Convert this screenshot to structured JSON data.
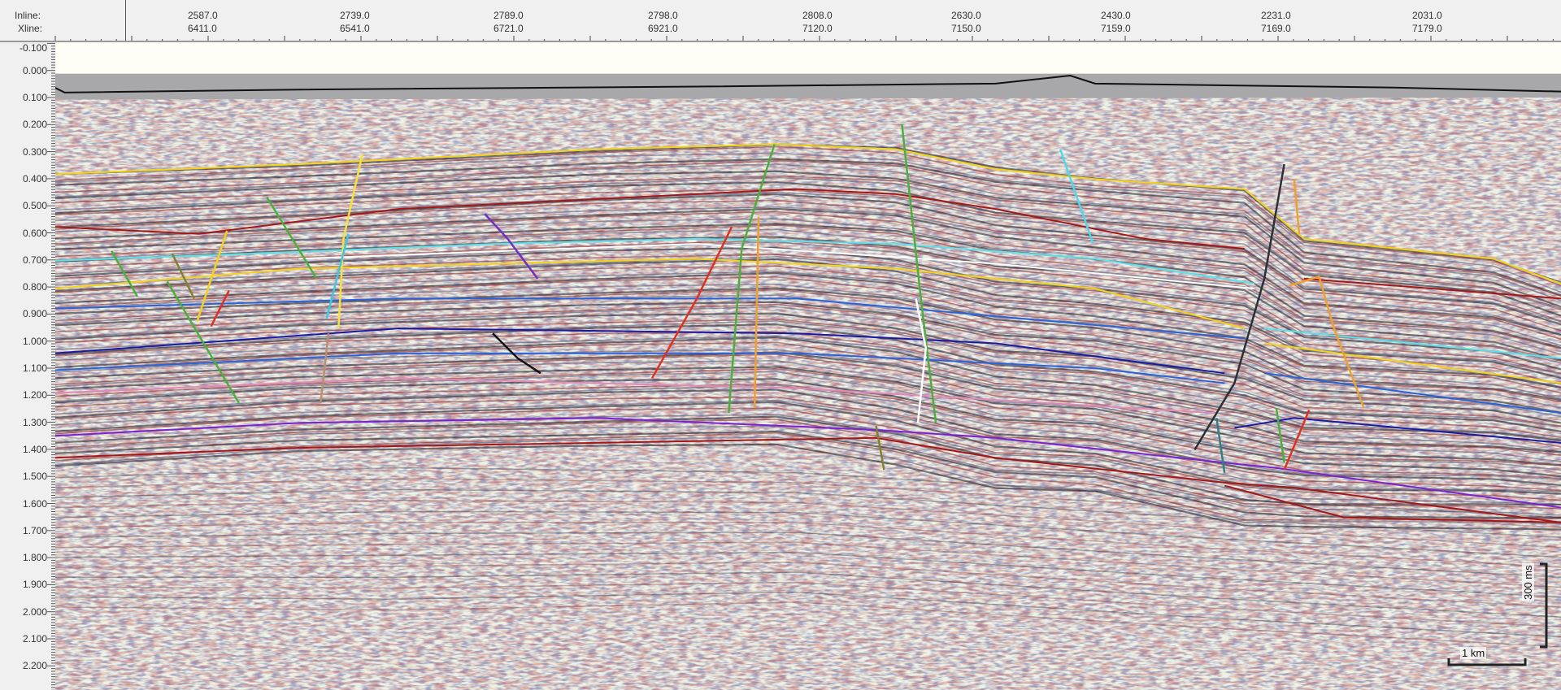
{
  "header": {
    "inline_label": "Inline:",
    "xline_label": "Xline:",
    "traces": [
      {
        "inline": "2587.0",
        "xline": "6411.0"
      },
      {
        "inline": "2739.0",
        "xline": "6541.0"
      },
      {
        "inline": "2789.0",
        "xline": "6721.0"
      },
      {
        "inline": "2798.0",
        "xline": "6921.0"
      },
      {
        "inline": "2808.0",
        "xline": "7120.0"
      },
      {
        "inline": "2630.0",
        "xline": "7150.0"
      },
      {
        "inline": "2430.0",
        "xline": "7159.0"
      },
      {
        "inline": "2231.0",
        "xline": "7169.0"
      },
      {
        "inline": "2031.0",
        "xline": "7179.0"
      }
    ]
  },
  "time_axis": {
    "unit": "s",
    "ticks": [
      "-0.100",
      "0.000",
      "0.100",
      "0.200",
      "0.300",
      "0.400",
      "0.500",
      "0.600",
      "0.700",
      "0.800",
      "0.900",
      "1.000",
      "1.100",
      "1.200",
      "1.300",
      "1.400",
      "1.500",
      "1.600",
      "1.700",
      "1.800",
      "1.900",
      "2.000",
      "2.100",
      "2.200"
    ]
  },
  "scale_bars": {
    "vertical_label": "300 ms",
    "horizontal_label": "1 km"
  },
  "colors": {
    "background": "#eef2e6",
    "horizon_yellow": "#f2d21a",
    "horizon_darkred": "#a01818",
    "horizon_cyan": "#5ee0e8",
    "horizon_blue": "#2a63d8",
    "horizon_darkblue": "#1a1aa0",
    "horizon_purple": "#7a22d0",
    "horizon_pink": "#e08ab8"
  }
}
